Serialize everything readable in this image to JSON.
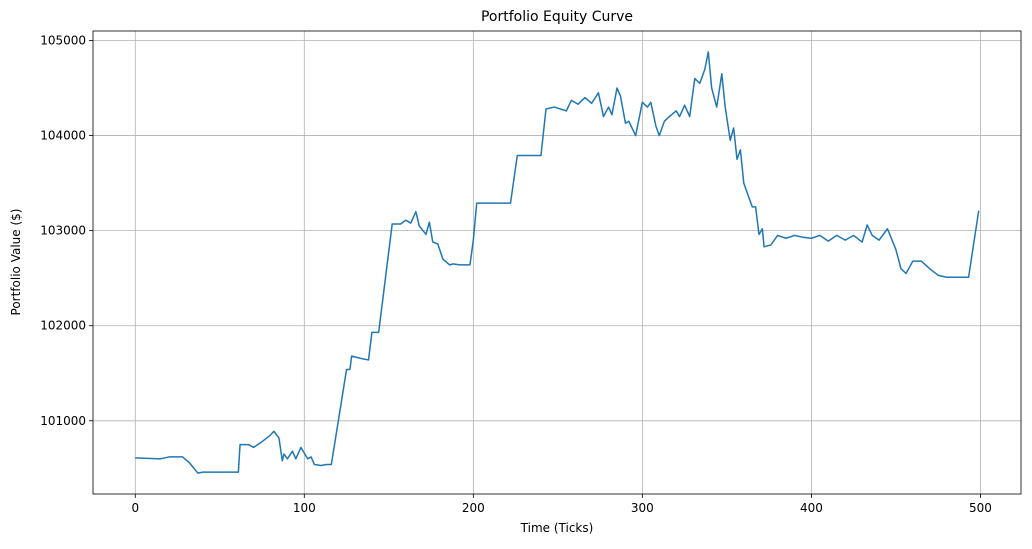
{
  "chart_data": {
    "type": "line",
    "title": "Portfolio Equity Curve",
    "xlabel": "Time (Ticks)",
    "ylabel": "Portfolio Value ($)",
    "x": [
      0,
      15,
      20,
      28,
      32,
      37,
      40,
      61,
      62,
      67,
      70,
      75,
      80,
      82,
      85,
      87,
      88,
      90,
      93,
      95,
      98,
      102,
      104,
      106,
      110,
      113,
      116,
      125,
      127,
      128,
      135,
      138,
      140,
      144,
      152,
      157,
      160,
      163,
      166,
      168,
      172,
      174,
      176,
      179,
      182,
      186,
      188,
      192,
      198,
      200,
      202,
      222,
      226,
      240,
      243,
      248,
      255,
      258,
      262,
      266,
      270,
      274,
      277,
      280,
      282,
      285,
      287,
      290,
      292,
      296,
      300,
      303,
      305,
      308,
      310,
      313,
      316,
      320,
      322,
      325,
      328,
      331,
      334,
      337,
      339,
      341,
      344,
      347,
      349,
      352,
      354,
      356,
      358,
      360,
      363,
      365,
      367,
      369,
      371,
      372,
      376,
      380,
      385,
      390,
      395,
      400,
      405,
      410,
      415,
      420,
      425,
      430,
      433,
      436,
      440,
      445,
      450,
      453,
      456,
      460,
      465,
      470,
      475,
      480,
      493,
      497,
      499
    ],
    "series": [
      {
        "name": "Portfolio Value",
        "color": "#1f77b4",
        "values": [
          100610,
          100600,
          100620,
          100620,
          100560,
          100450,
          100460,
          100460,
          100750,
          100750,
          100720,
          100780,
          100850,
          100890,
          100820,
          100580,
          100650,
          100600,
          100680,
          100600,
          100720,
          100600,
          100620,
          100540,
          100530,
          100540,
          100540,
          101540,
          101540,
          101680,
          101650,
          101640,
          101930,
          101930,
          103070,
          103070,
          103110,
          103080,
          103200,
          103050,
          102960,
          103090,
          102880,
          102860,
          102700,
          102640,
          102650,
          102640,
          102640,
          102900,
          103290,
          103290,
          103790,
          103790,
          104280,
          104300,
          104260,
          104370,
          104330,
          104400,
          104340,
          104450,
          104200,
          104300,
          104220,
          104500,
          104420,
          104130,
          104150,
          104000,
          104350,
          104300,
          104350,
          104100,
          104000,
          104150,
          104200,
          104260,
          104200,
          104320,
          104200,
          104600,
          104550,
          104700,
          104880,
          104500,
          104300,
          104650,
          104300,
          103950,
          104080,
          103750,
          103850,
          103500,
          103350,
          103250,
          103250,
          102960,
          103020,
          102830,
          102850,
          102950,
          102920,
          102950,
          102930,
          102920,
          102950,
          102890,
          102950,
          102900,
          102950,
          102880,
          103060,
          102950,
          102900,
          103020,
          102800,
          102600,
          102550,
          102680,
          102680,
          102600,
          102530,
          102510,
          102510,
          102980,
          103210
        ]
      }
    ],
    "xlim": [
      -25,
      524
    ],
    "xticks": [
      0,
      100,
      200,
      300,
      400,
      500
    ],
    "ylim": [
      100230,
      105100
    ],
    "yticks": [
      101000,
      102000,
      103000,
      104000,
      105000
    ],
    "grid": true
  }
}
